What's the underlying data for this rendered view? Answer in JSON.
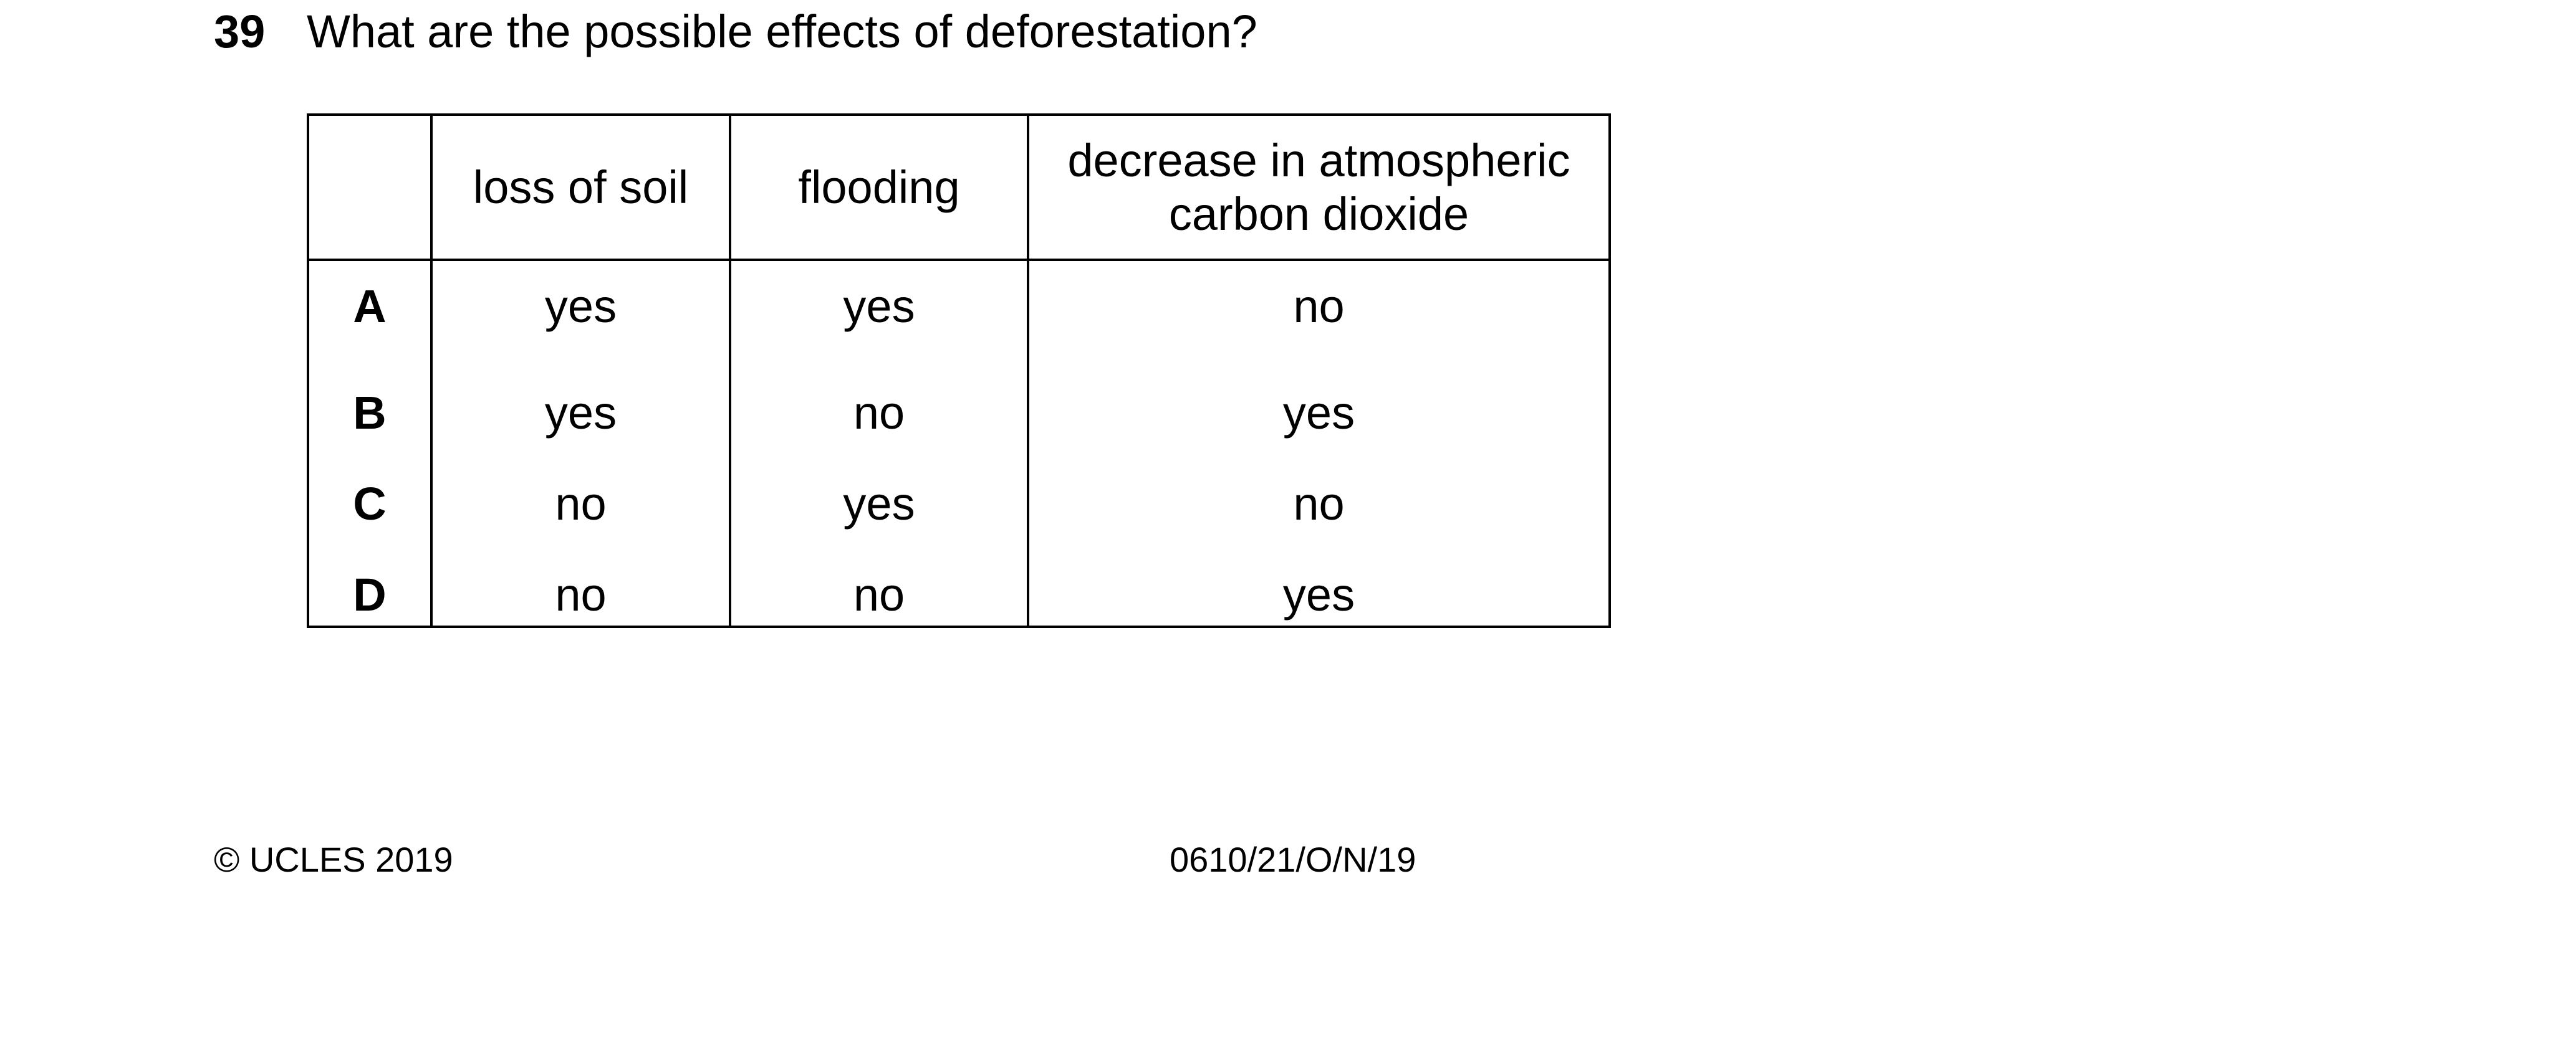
{
  "question": {
    "number": "39",
    "text": "What are the possible effects of deforestation?"
  },
  "table": {
    "headers": [
      "",
      "loss of soil",
      "flooding",
      "decrease in atmospheric carbon dioxide"
    ],
    "rows": [
      {
        "letter": "A",
        "loss_of_soil": "yes",
        "flooding": "yes",
        "decrease_co2": "no"
      },
      {
        "letter": "B",
        "loss_of_soil": "yes",
        "flooding": "no",
        "decrease_co2": "yes"
      },
      {
        "letter": "C",
        "loss_of_soil": "no",
        "flooding": "yes",
        "decrease_co2": "no"
      },
      {
        "letter": "D",
        "loss_of_soil": "no",
        "flooding": "no",
        "decrease_co2": "yes"
      }
    ]
  },
  "footer": {
    "copyright": "© UCLES 2019",
    "paper_code": "0610/21/O/N/19"
  }
}
